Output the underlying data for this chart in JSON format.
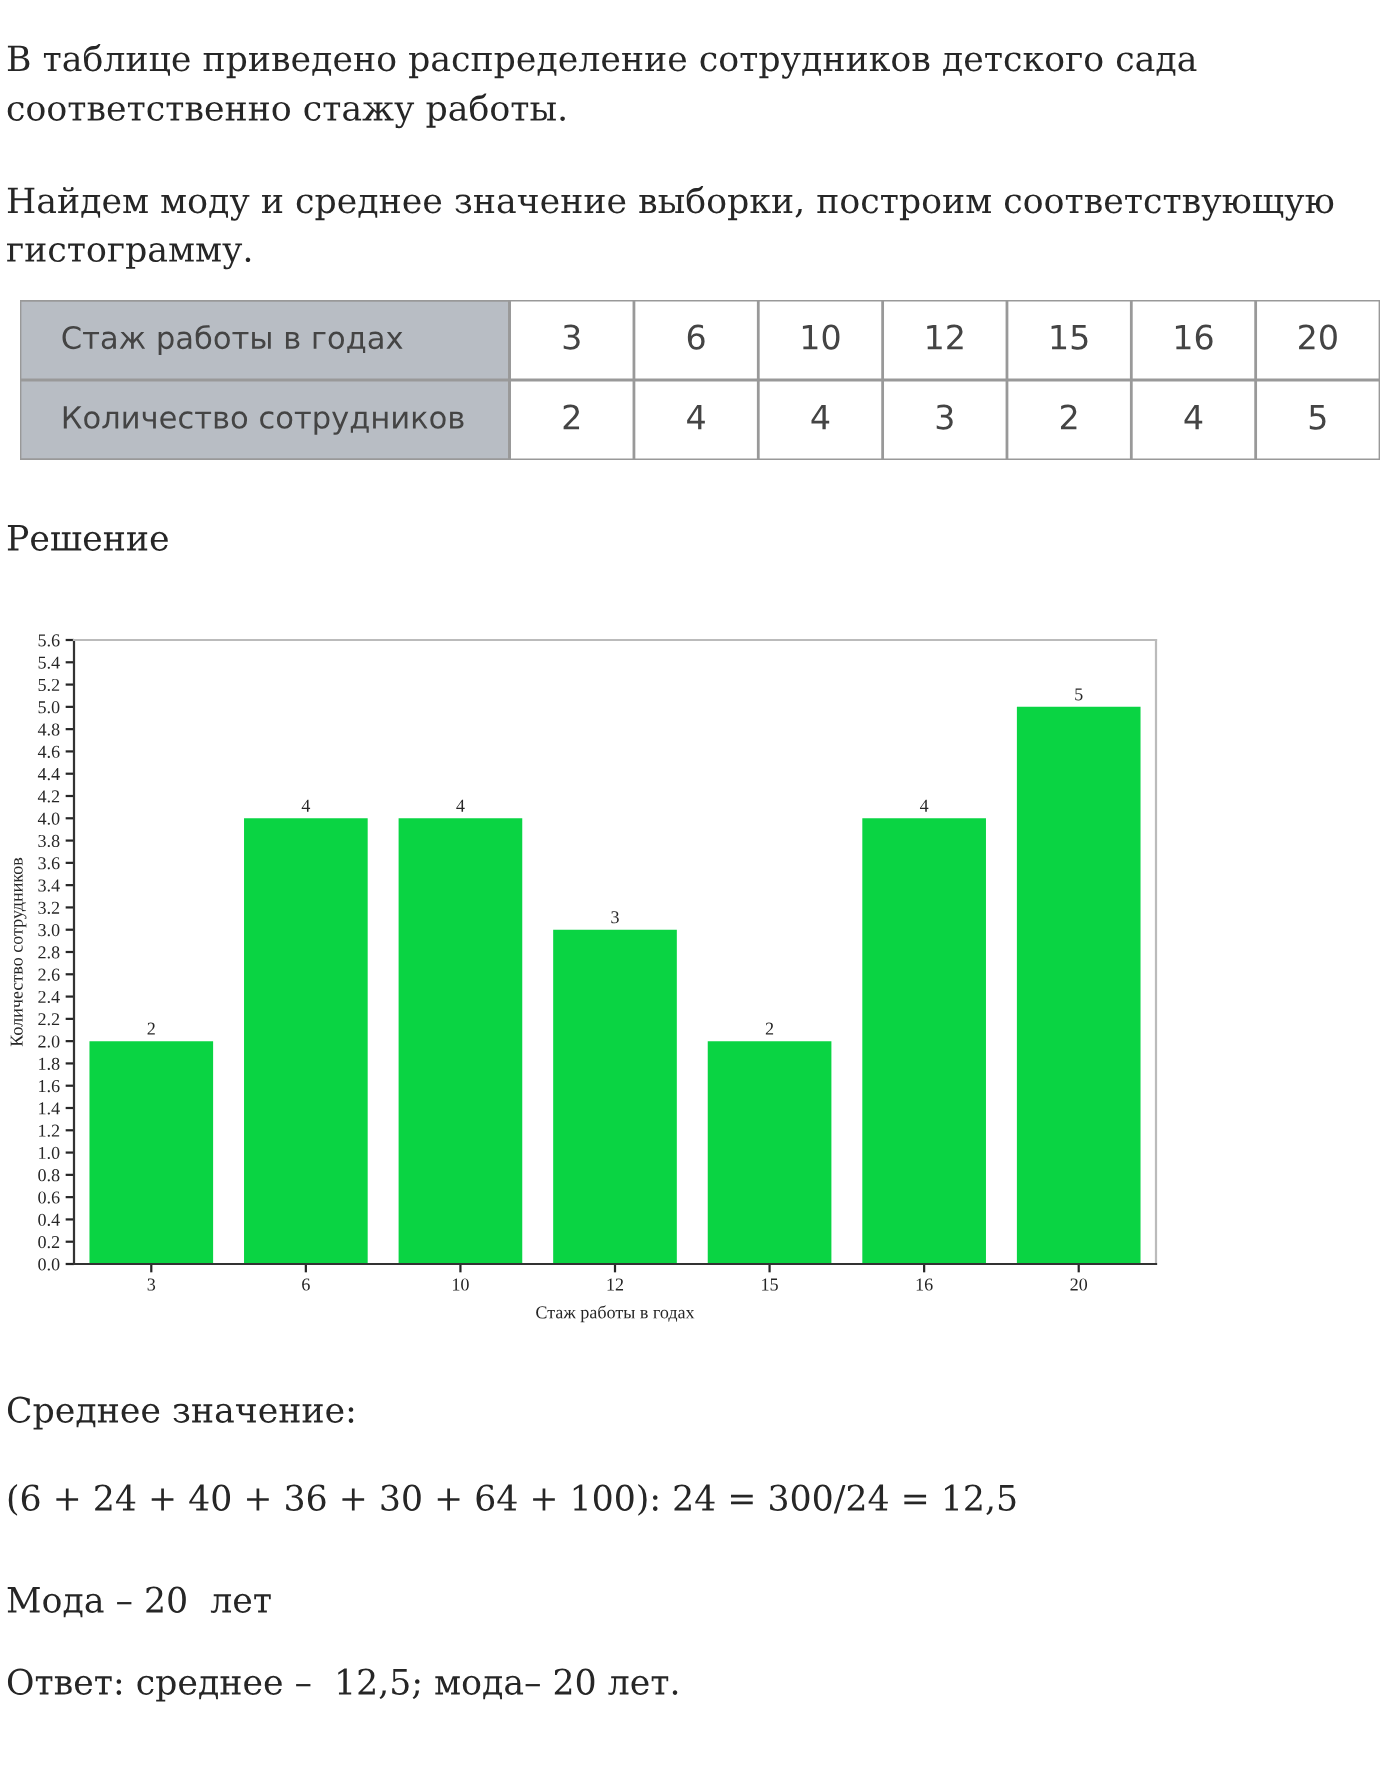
{
  "chart_data": [
    {
      "type": "other",
      "annotations": [
        "В таблице приведено распределение сотрудников детского сада соответственно стажу работы.",
        "Найдем моду и среднее значение выборки, построим соответствующую гистограмму.",
        "Стаж работы в годах",
        "3",
        "6",
        "10",
        "12",
        "15",
        "16",
        "20",
        "Количество сотрудников",
        "2",
        "4",
        "4",
        "3",
        "2",
        "4",
        "5",
        "Решение"
      ]
    },
    {
      "type": "bar",
      "categories": [
        "3",
        "6",
        "10",
        "12",
        "15",
        "16",
        "20"
      ],
      "values": [
        2,
        4,
        4,
        3,
        2,
        4,
        5
      ],
      "color": "#0ad443",
      "xlabel": "Стаж работы в годах",
      "ylabel": "Количество сотрудников",
      "ylim": [
        0,
        5.6
      ],
      "yticks": [
        {
          "value": 0,
          "label": "0.0"
        },
        {
          "value": 0.2,
          "label": "0.2"
        },
        {
          "value": 0.4,
          "label": "0.4"
        },
        {
          "value": 0.6,
          "label": "0.6"
        },
        {
          "value": 0.8,
          "label": "0.8"
        },
        {
          "value": 1.0,
          "label": "1.0"
        },
        {
          "value": 1.2,
          "label": "1.2"
        },
        {
          "value": 1.4,
          "label": "1.4"
        },
        {
          "value": 1.6,
          "label": "1.6"
        },
        {
          "value": 1.8,
          "label": "1.8"
        },
        {
          "value": 2.0,
          "label": "2.0"
        },
        {
          "value": 2.2,
          "label": "2.2"
        },
        {
          "value": 2.4,
          "label": "2.4"
        },
        {
          "value": 2.6,
          "label": "2.6"
        },
        {
          "value": 2.8,
          "label": "2.8"
        },
        {
          "value": 3.0,
          "label": "3.0"
        },
        {
          "value": 3.2,
          "label": "3.2"
        },
        {
          "value": 3.4,
          "label": "3.4"
        },
        {
          "value": 3.6,
          "label": "3.6"
        },
        {
          "value": 3.8,
          "label": "3.8"
        },
        {
          "value": 4.0,
          "label": "4.0"
        },
        {
          "value": 4.2,
          "label": "4.2"
        },
        {
          "value": 4.4,
          "label": "4.4"
        },
        {
          "value": 4.6,
          "label": "4.6"
        },
        {
          "value": 4.8,
          "label": "4.8"
        },
        {
          "value": 5.0,
          "label": "5.0"
        },
        {
          "value": 5.2,
          "label": "5.2"
        },
        {
          "value": 5.4,
          "label": "5.4"
        },
        {
          "value": 5.6,
          "label": "5.6"
        }
      ],
      "data_labels": true,
      "grid": false,
      "annotations": [
        "Среднее значение:",
        "(6 + 24 + 40 + 36 + 30 + 64 + 100): 24 = 300/24 = 12,5",
        "Мода – 20  лет",
        "Ответ: среднее –  12,5; мода– 20 лет."
      ]
    }
  ]
}
